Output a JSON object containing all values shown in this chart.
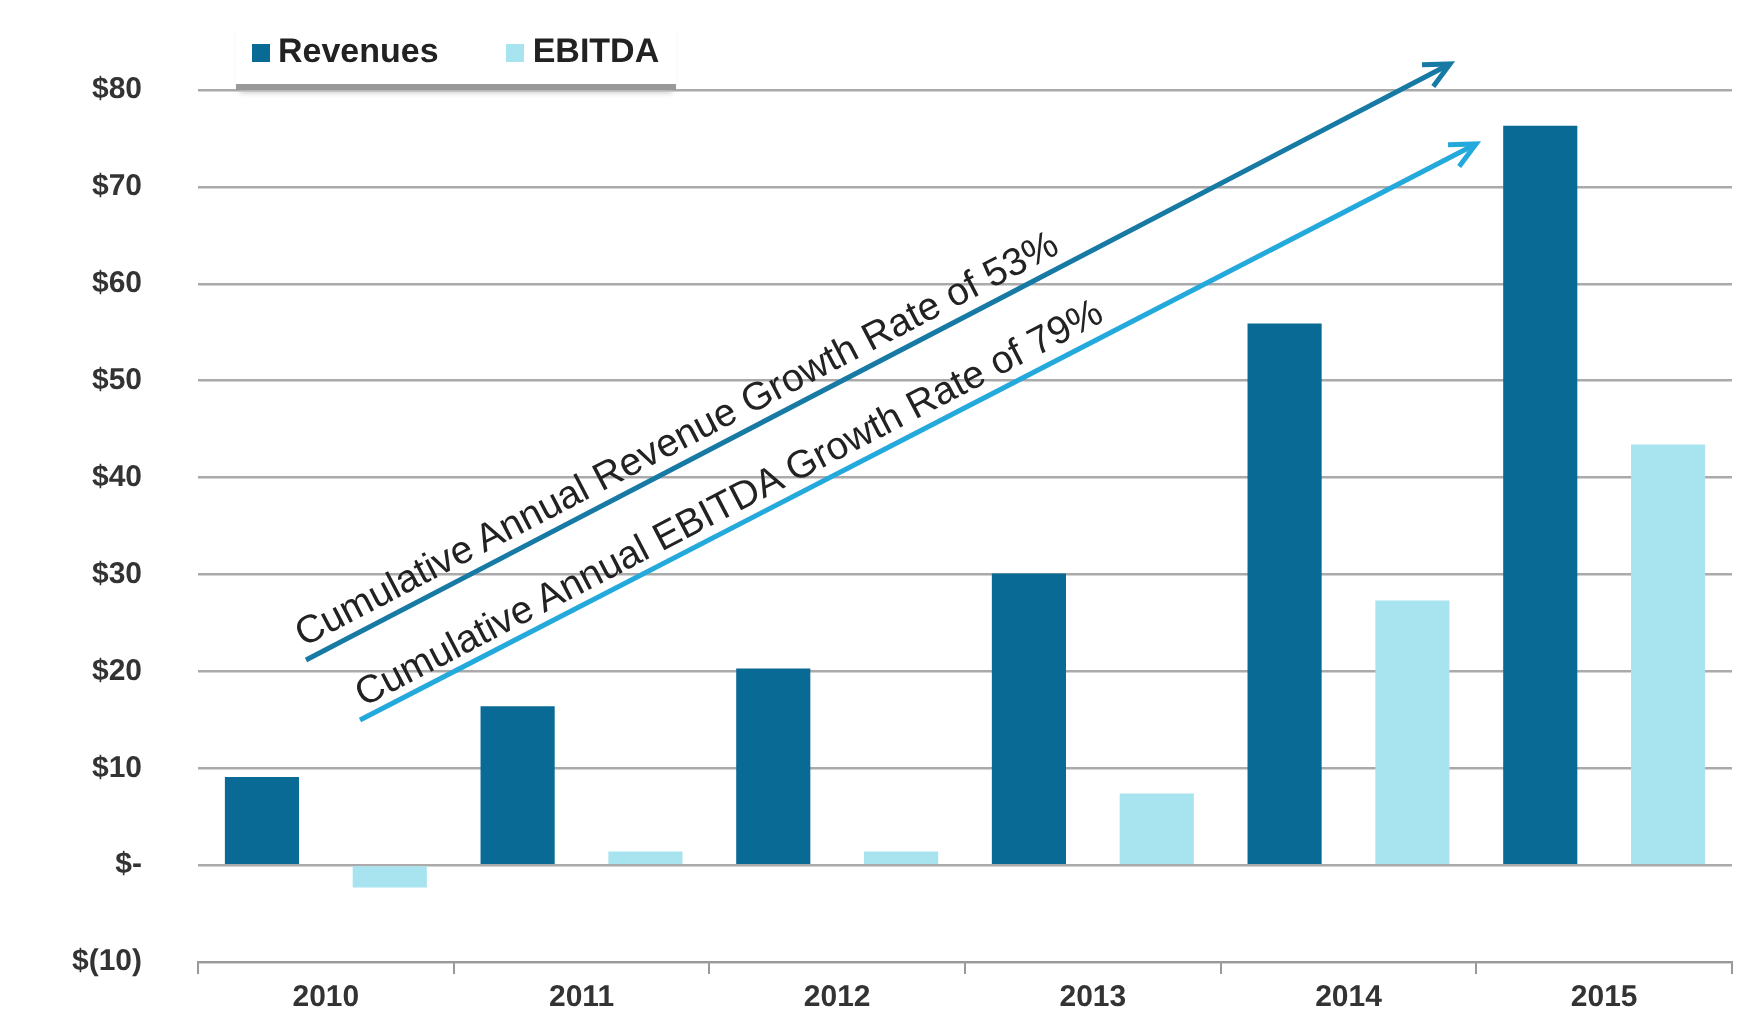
{
  "chart_data": {
    "type": "bar",
    "categories": [
      "2010",
      "2011",
      "2012",
      "2013",
      "2014",
      "2015"
    ],
    "series": [
      {
        "name": "Revenues",
        "color": "#0a6a96",
        "values": [
          9.1,
          16.4,
          20.3,
          30.1,
          55.9,
          76.3
        ]
      },
      {
        "name": "EBITDA",
        "color": "#a8e4f0",
        "values": [
          -2.3,
          1.4,
          1.4,
          7.4,
          27.3,
          43.4
        ]
      }
    ],
    "ylim": [
      -10,
      80
    ],
    "yticks": [
      {
        "value": -10,
        "label": "$(10)"
      },
      {
        "value": 0,
        "label": "$-"
      },
      {
        "value": 10,
        "label": "$10"
      },
      {
        "value": 20,
        "label": "$20"
      },
      {
        "value": 30,
        "label": "$30"
      },
      {
        "value": 40,
        "label": "$40"
      },
      {
        "value": 50,
        "label": "$50"
      },
      {
        "value": 60,
        "label": "$60"
      },
      {
        "value": 70,
        "label": "$70"
      },
      {
        "value": 80,
        "label": "$80"
      }
    ],
    "grid": "y",
    "legend": "top left",
    "annotations": [
      "Cumulative Annual Revenue Growth Rate of 53%",
      "Cumulative Annual EBITDA Growth Rate of 79%"
    ]
  }
}
